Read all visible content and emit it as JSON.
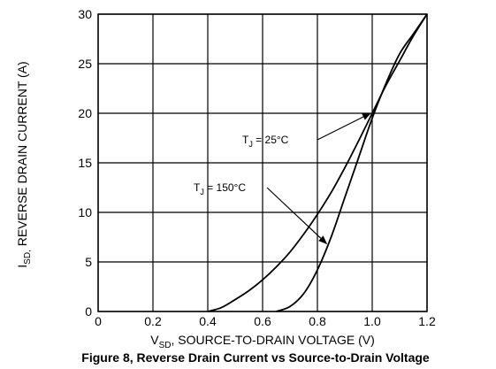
{
  "chart_data": {
    "type": "line",
    "caption": "Figure 8, Reverse Drain Current vs Source-to-Drain Voltage",
    "xlabel": {
      "symbol": "V",
      "subscript": "SD",
      "text": ", SOURCE-TO-DRAIN VOLTAGE (V)"
    },
    "ylabel": {
      "symbol": "I",
      "subscript": "SD,",
      "text": " REVERSE DRAIN CURRENT (A)"
    },
    "xlim": [
      0,
      1.2
    ],
    "ylim": [
      0,
      30
    ],
    "x_ticks": [
      "0",
      "0.2",
      "0.4",
      "0.6",
      "0.8",
      "1.0",
      "1.2"
    ],
    "y_ticks": [
      "0",
      "5",
      "10",
      "15",
      "20",
      "25",
      "30"
    ],
    "grid": true,
    "series": [
      {
        "name": "T_J = 25°C",
        "label": {
          "symbol": "T",
          "subscript": "J",
          "text": " = 25°C"
        },
        "x": [
          0.4,
          0.45,
          0.5,
          0.55,
          0.6,
          0.65,
          0.7,
          0.75,
          0.8,
          0.85,
          0.9,
          0.95,
          1.0,
          1.05,
          1.1,
          1.15,
          1.2
        ],
        "y": [
          0,
          0.4,
          1.2,
          2.1,
          3.2,
          4.5,
          6.0,
          7.8,
          9.8,
          12.0,
          14.5,
          17.2,
          20.0,
          22.8,
          25.3,
          27.8,
          30.0
        ]
      },
      {
        "name": "T_J = 150°C",
        "label": {
          "symbol": "T",
          "subscript": "J",
          "text": " = 150°C"
        },
        "x": [
          0.65,
          0.7,
          0.75,
          0.8,
          0.85,
          0.9,
          0.95,
          1.0,
          1.05,
          1.1,
          1.15,
          1.2
        ],
        "y": [
          0,
          0.5,
          1.8,
          4.2,
          7.5,
          11.5,
          15.5,
          19.5,
          23.0,
          26.0,
          28.0,
          30.0
        ]
      }
    ],
    "annotations": [
      {
        "series": 0,
        "at_x": 1.0
      },
      {
        "series": 1,
        "at_x": 0.84
      }
    ]
  }
}
